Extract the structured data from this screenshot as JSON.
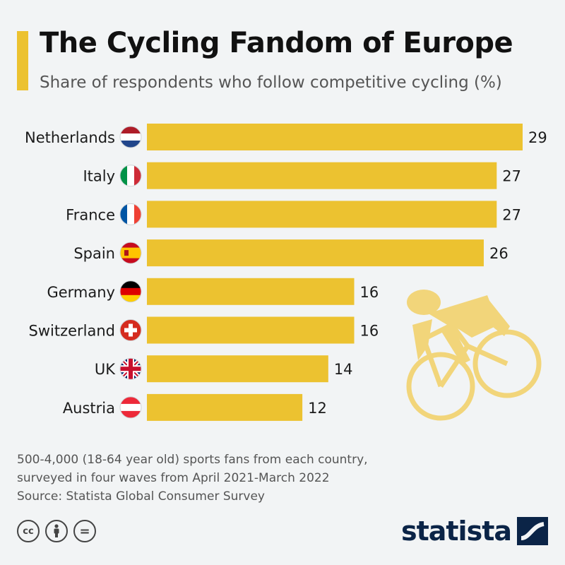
{
  "header": {
    "title": "The Cycling Fandom of Europe",
    "subtitle": "Share of respondents who follow competitive cycling (%)"
  },
  "colors": {
    "bar": "#ecc230",
    "accent": "#ecc230",
    "logo": "#0b2447",
    "cyclist": "#f2d57a"
  },
  "chart_data": {
    "type": "bar",
    "orientation": "horizontal",
    "title": "The Cycling Fandom of Europe",
    "subtitle": "Share of respondents who follow competitive cycling (%)",
    "categories": [
      "Netherlands",
      "Italy",
      "France",
      "Spain",
      "Germany",
      "Switzerland",
      "UK",
      "Austria"
    ],
    "values": [
      29,
      27,
      27,
      26,
      16,
      16,
      14,
      12
    ],
    "flag_icons": [
      "netherlands-flag-icon",
      "italy-flag-icon",
      "france-flag-icon",
      "spain-flag-icon",
      "germany-flag-icon",
      "switzerland-flag-icon",
      "uk-flag-icon",
      "austria-flag-icon"
    ],
    "xlim": [
      0,
      29
    ],
    "grid": false,
    "legend": "none"
  },
  "footnote": {
    "line1": "500-4,000 (18-64 year old) sports fans from each country,",
    "line2": "surveyed in four waves from April 2021-March 2022",
    "source": "Source: Statista Global Consumer Survey"
  },
  "license": {
    "cc": "cc",
    "equals": "="
  },
  "logo": {
    "text": "statista"
  }
}
